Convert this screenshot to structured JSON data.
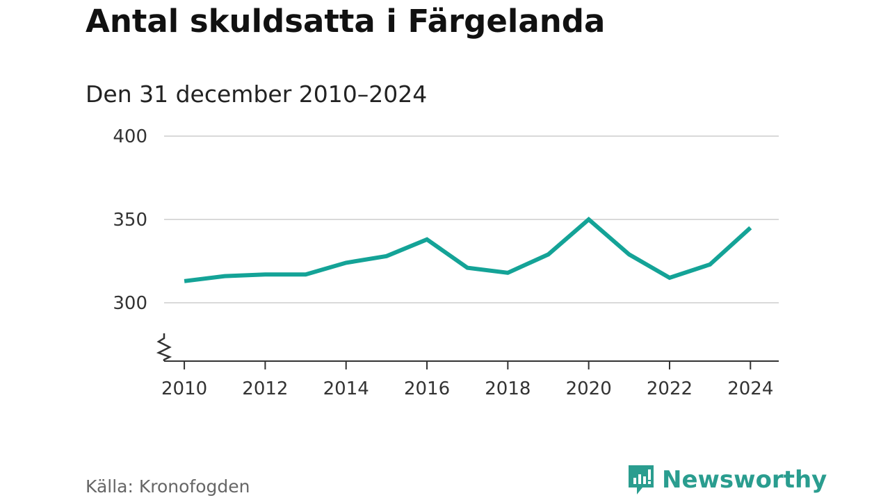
{
  "colors": {
    "line": "#14a397",
    "grid": "#d9d9d9",
    "axis": "#333333",
    "brand": "#2a9d8f"
  },
  "chart_data": {
    "type": "line",
    "title": "Antal skuldsatta i Färgelanda",
    "subtitle": "Den 31 december 2010–2024",
    "x": [
      2010,
      2011,
      2012,
      2013,
      2014,
      2015,
      2016,
      2017,
      2018,
      2019,
      2020,
      2021,
      2022,
      2023,
      2024
    ],
    "series": [
      {
        "name": "Antal skuldsatta",
        "values": [
          313,
          316,
          317,
          317,
          324,
          328,
          338,
          321,
          318,
          329,
          350,
          329,
          315,
          323,
          345
        ]
      }
    ],
    "x_tick_labels": [
      "2010",
      "2012",
      "2014",
      "2016",
      "2018",
      "2020",
      "2022",
      "2024"
    ],
    "y_tick_labels": [
      "300",
      "350",
      "400"
    ],
    "y_ticks": [
      300,
      350,
      400
    ],
    "ylim": [
      265,
      400
    ],
    "xlim": [
      2009.5,
      2024.7
    ],
    "xlabel": "",
    "ylabel": "",
    "grid": true,
    "axis_break": true
  },
  "footer": {
    "source": "Källa: Kronofogden",
    "brand": "Newsworthy",
    "brand_icon": "newsworthy-logo-icon"
  }
}
